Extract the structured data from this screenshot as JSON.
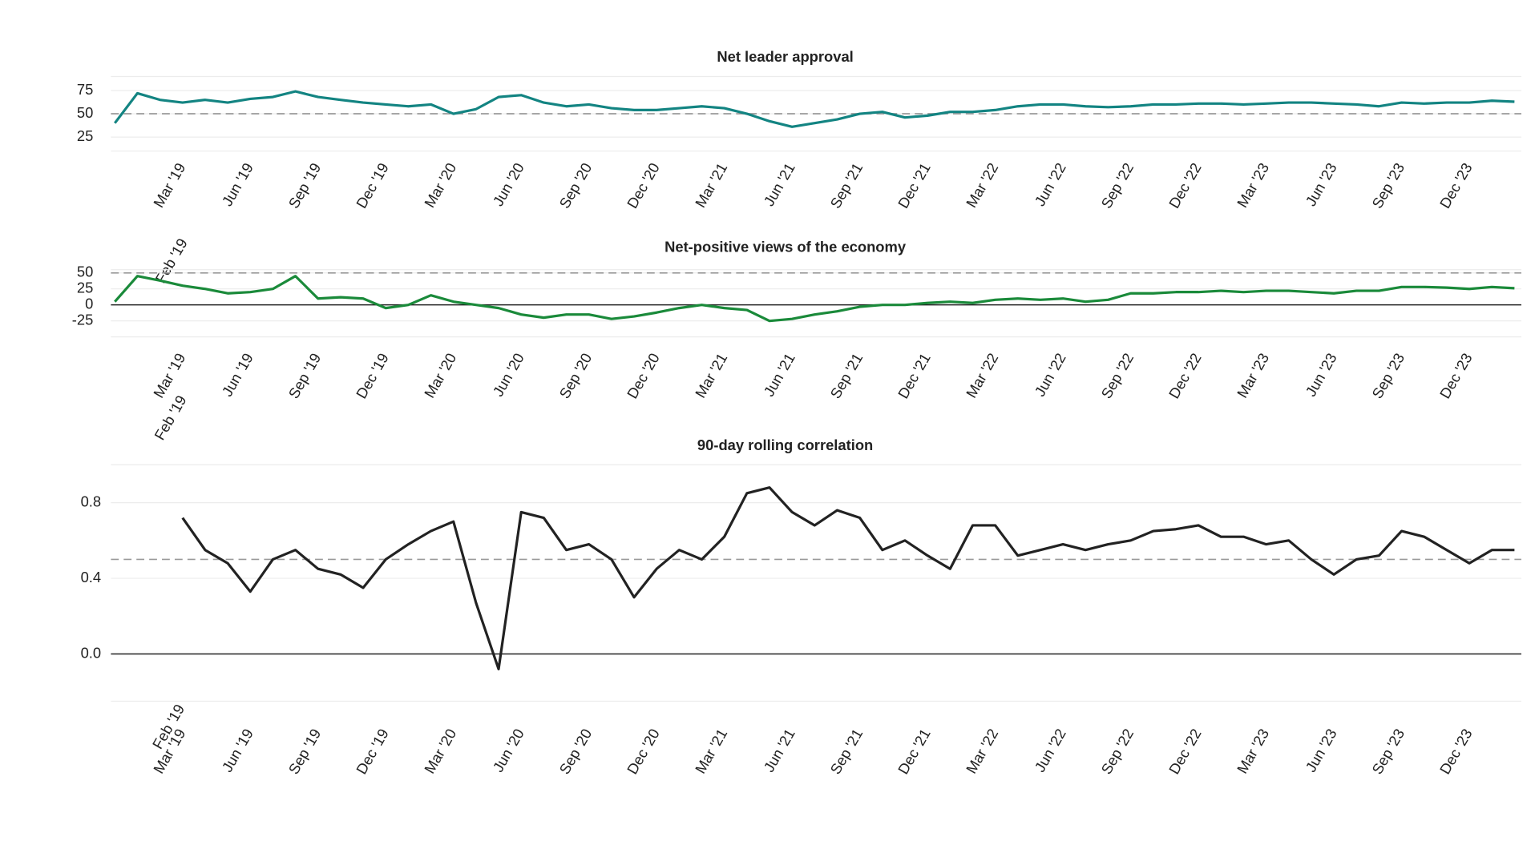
{
  "chart_data": [
    {
      "type": "line",
      "title": "Net leader approval",
      "x": [
        "2018-12",
        "2019-01",
        "2019-02",
        "2019-03",
        "2019-04",
        "2019-05",
        "2019-06",
        "2019-07",
        "2019-08",
        "2019-09",
        "2019-10",
        "2019-11",
        "2019-12",
        "2020-01",
        "2020-02",
        "2020-03",
        "2020-04",
        "2020-05",
        "2020-06",
        "2020-07",
        "2020-08",
        "2020-09",
        "2020-10",
        "2020-11",
        "2020-12",
        "2021-01",
        "2021-02",
        "2021-03",
        "2021-04",
        "2021-05",
        "2021-06",
        "2021-07",
        "2021-08",
        "2021-09",
        "2021-10",
        "2021-11",
        "2021-12",
        "2022-01",
        "2022-02",
        "2022-03",
        "2022-04",
        "2022-05",
        "2022-06",
        "2022-07",
        "2022-08",
        "2022-09",
        "2022-10",
        "2022-11",
        "2022-12",
        "2023-01",
        "2023-02",
        "2023-03",
        "2023-04",
        "2023-05",
        "2023-06",
        "2023-07",
        "2023-08",
        "2023-09",
        "2023-10",
        "2023-11",
        "2023-12",
        "2024-01",
        "2024-02"
      ],
      "series": [
        {
          "color": "#138482",
          "values": [
            40,
            72,
            65,
            62,
            65,
            62,
            66,
            68,
            74,
            68,
            65,
            62,
            60,
            58,
            60,
            50,
            55,
            68,
            70,
            62,
            58,
            60,
            56,
            54,
            54,
            56,
            58,
            56,
            50,
            42,
            36,
            40,
            44,
            50,
            52,
            46,
            48,
            52,
            52,
            54,
            58,
            60,
            60,
            58,
            57,
            58,
            60,
            60,
            61,
            61,
            60,
            61,
            62,
            62,
            61,
            60,
            58,
            62,
            61,
            62,
            62,
            64,
            63
          ]
        }
      ],
      "xlim": [
        "2018-12",
        "2024-02"
      ],
      "ylim": [
        10,
        90
      ],
      "yticks": [
        25,
        50,
        75
      ],
      "hlines": [
        {
          "value": 50,
          "style": "dashed"
        }
      ],
      "grid": true,
      "xticks": [
        {
          "value": "2019-02",
          "label": "Feb '19"
        },
        {
          "value": "2019-03",
          "label": "Mar '19"
        },
        {
          "value": "2019-06",
          "label": "Jun '19"
        },
        {
          "value": "2019-09",
          "label": "Sep '19"
        },
        {
          "value": "2019-12",
          "label": "Dec '19"
        },
        {
          "value": "2020-03",
          "label": "Mar '20"
        },
        {
          "value": "2020-06",
          "label": "Jun '20"
        },
        {
          "value": "2020-09",
          "label": "Sep '20"
        },
        {
          "value": "2020-12",
          "label": "Dec '20"
        },
        {
          "value": "2021-03",
          "label": "Mar '21"
        },
        {
          "value": "2021-06",
          "label": "Jun '21"
        },
        {
          "value": "2021-09",
          "label": "Sep '21"
        },
        {
          "value": "2021-12",
          "label": "Dec '21"
        },
        {
          "value": "2022-03",
          "label": "Mar '22"
        },
        {
          "value": "2022-06",
          "label": "Jun '22"
        },
        {
          "value": "2022-09",
          "label": "Sep '22"
        },
        {
          "value": "2022-12",
          "label": "Dec '22"
        },
        {
          "value": "2023-03",
          "label": "Mar '23"
        },
        {
          "value": "2023-06",
          "label": "Jun '23"
        },
        {
          "value": "2023-09",
          "label": "Sep '23"
        },
        {
          "value": "2023-12",
          "label": "Dec '23"
        }
      ]
    },
    {
      "type": "line",
      "title": "Net-positive views of the economy",
      "x": [
        "2018-12",
        "2019-01",
        "2019-02",
        "2019-03",
        "2019-04",
        "2019-05",
        "2019-06",
        "2019-07",
        "2019-08",
        "2019-09",
        "2019-10",
        "2019-11",
        "2019-12",
        "2020-01",
        "2020-02",
        "2020-03",
        "2020-04",
        "2020-05",
        "2020-06",
        "2020-07",
        "2020-08",
        "2020-09",
        "2020-10",
        "2020-11",
        "2020-12",
        "2021-01",
        "2021-02",
        "2021-03",
        "2021-04",
        "2021-05",
        "2021-06",
        "2021-07",
        "2021-08",
        "2021-09",
        "2021-10",
        "2021-11",
        "2021-12",
        "2022-01",
        "2022-02",
        "2022-03",
        "2022-04",
        "2022-05",
        "2022-06",
        "2022-07",
        "2022-08",
        "2022-09",
        "2022-10",
        "2022-11",
        "2022-12",
        "2023-01",
        "2023-02",
        "2023-03",
        "2023-04",
        "2023-05",
        "2023-06",
        "2023-07",
        "2023-08",
        "2023-09",
        "2023-10",
        "2023-11",
        "2023-12",
        "2024-01",
        "2024-02"
      ],
      "series": [
        {
          "color": "#1a8a3a",
          "values": [
            5,
            45,
            38,
            30,
            25,
            18,
            20,
            25,
            45,
            10,
            12,
            10,
            -5,
            0,
            15,
            5,
            0,
            -5,
            -15,
            -20,
            -15,
            -15,
            -22,
            -18,
            -12,
            -5,
            0,
            -5,
            -8,
            -25,
            -22,
            -15,
            -10,
            -3,
            0,
            0,
            3,
            5,
            3,
            8,
            10,
            8,
            10,
            5,
            8,
            18,
            18,
            20,
            20,
            22,
            20,
            22,
            22,
            20,
            18,
            22,
            22,
            28,
            28,
            27,
            25,
            28,
            26
          ]
        }
      ],
      "xlim": [
        "2018-12",
        "2024-02"
      ],
      "ylim": [
        -50,
        55
      ],
      "yticks": [
        -25,
        0,
        25,
        50
      ],
      "hlines": [
        {
          "value": 50,
          "style": "dashed"
        },
        {
          "value": 0,
          "style": "solid"
        }
      ],
      "grid": true,
      "xticks": [
        {
          "value": "2019-02",
          "label": "Feb '19"
        },
        {
          "value": "2019-03",
          "label": "Mar '19"
        },
        {
          "value": "2019-06",
          "label": "Jun '19"
        },
        {
          "value": "2019-09",
          "label": "Sep '19"
        },
        {
          "value": "2019-12",
          "label": "Dec '19"
        },
        {
          "value": "2020-03",
          "label": "Mar '20"
        },
        {
          "value": "2020-06",
          "label": "Jun '20"
        },
        {
          "value": "2020-09",
          "label": "Sep '20"
        },
        {
          "value": "2020-12",
          "label": "Dec '20"
        },
        {
          "value": "2021-03",
          "label": "Mar '21"
        },
        {
          "value": "2021-06",
          "label": "Jun '21"
        },
        {
          "value": "2021-09",
          "label": "Sep '21"
        },
        {
          "value": "2021-12",
          "label": "Dec '21"
        },
        {
          "value": "2022-03",
          "label": "Mar '22"
        },
        {
          "value": "2022-06",
          "label": "Jun '22"
        },
        {
          "value": "2022-09",
          "label": "Sep '22"
        },
        {
          "value": "2022-12",
          "label": "Dec '22"
        },
        {
          "value": "2023-03",
          "label": "Mar '23"
        },
        {
          "value": "2023-06",
          "label": "Jun '23"
        },
        {
          "value": "2023-09",
          "label": "Sep '23"
        },
        {
          "value": "2023-12",
          "label": "Dec '23"
        }
      ]
    },
    {
      "type": "line",
      "title": "90-day rolling correlation",
      "x": [
        "2018-12",
        "2019-01",
        "2019-02",
        "2019-03",
        "2019-04",
        "2019-05",
        "2019-06",
        "2019-07",
        "2019-08",
        "2019-09",
        "2019-10",
        "2019-11",
        "2019-12",
        "2020-01",
        "2020-02",
        "2020-03",
        "2020-04",
        "2020-05",
        "2020-06",
        "2020-07",
        "2020-08",
        "2020-09",
        "2020-10",
        "2020-11",
        "2020-12",
        "2021-01",
        "2021-02",
        "2021-03",
        "2021-04",
        "2021-05",
        "2021-06",
        "2021-07",
        "2021-08",
        "2021-09",
        "2021-10",
        "2021-11",
        "2021-12",
        "2022-01",
        "2022-02",
        "2022-03",
        "2022-04",
        "2022-05",
        "2022-06",
        "2022-07",
        "2022-08",
        "2022-09",
        "2022-10",
        "2022-11",
        "2022-12",
        "2023-01",
        "2023-02",
        "2023-03",
        "2023-04",
        "2023-05",
        "2023-06",
        "2023-07",
        "2023-08",
        "2023-09",
        "2023-10",
        "2023-11",
        "2023-12",
        "2024-01",
        "2024-02"
      ],
      "series": [
        {
          "color": "#222222",
          "values": [
            null,
            null,
            null,
            0.72,
            0.55,
            0.48,
            0.33,
            0.5,
            0.55,
            0.45,
            0.42,
            0.35,
            0.5,
            0.58,
            0.65,
            0.7,
            0.27,
            -0.08,
            0.75,
            0.72,
            0.55,
            0.58,
            0.5,
            0.3,
            0.45,
            0.55,
            0.5,
            0.62,
            0.85,
            0.88,
            0.75,
            0.68,
            0.76,
            0.72,
            0.55,
            0.6,
            0.52,
            0.45,
            0.68,
            0.68,
            0.52,
            0.55,
            0.58,
            0.55,
            0.58,
            0.6,
            0.65,
            0.66,
            0.68,
            0.62,
            0.62,
            0.58,
            0.6,
            0.5,
            0.42,
            0.5,
            0.52,
            0.65,
            0.62,
            0.55,
            0.48,
            0.55,
            0.55
          ]
        }
      ],
      "xlim": [
        "2018-12",
        "2024-02"
      ],
      "ylim": [
        -0.25,
        1.0
      ],
      "yticks": [
        {
          "value": 0,
          "label": "0.0"
        },
        0.4,
        0.8
      ],
      "hlines": [
        {
          "value": 0.5,
          "style": "dashed"
        },
        {
          "value": 0,
          "style": "solid"
        }
      ],
      "grid": true,
      "xticks": [
        {
          "value": "2019-02",
          "label": "Feb '19"
        },
        {
          "value": "2019-03",
          "label": "Mar '19"
        },
        {
          "value": "2019-06",
          "label": "Jun '19"
        },
        {
          "value": "2019-09",
          "label": "Sep '19"
        },
        {
          "value": "2019-12",
          "label": "Dec '19"
        },
        {
          "value": "2020-03",
          "label": "Mar '20"
        },
        {
          "value": "2020-06",
          "label": "Jun '20"
        },
        {
          "value": "2020-09",
          "label": "Sep '20"
        },
        {
          "value": "2020-12",
          "label": "Dec '20"
        },
        {
          "value": "2021-03",
          "label": "Mar '21"
        },
        {
          "value": "2021-06",
          "label": "Jun '21"
        },
        {
          "value": "2021-09",
          "label": "Sep '21"
        },
        {
          "value": "2021-12",
          "label": "Dec '21"
        },
        {
          "value": "2022-03",
          "label": "Mar '22"
        },
        {
          "value": "2022-06",
          "label": "Jun '22"
        },
        {
          "value": "2022-09",
          "label": "Sep '22"
        },
        {
          "value": "2022-12",
          "label": "Dec '22"
        },
        {
          "value": "2023-03",
          "label": "Mar '23"
        },
        {
          "value": "2023-06",
          "label": "Jun '23"
        },
        {
          "value": "2023-09",
          "label": "Sep '23"
        },
        {
          "value": "2023-12",
          "label": "Dec '23"
        }
      ]
    }
  ]
}
